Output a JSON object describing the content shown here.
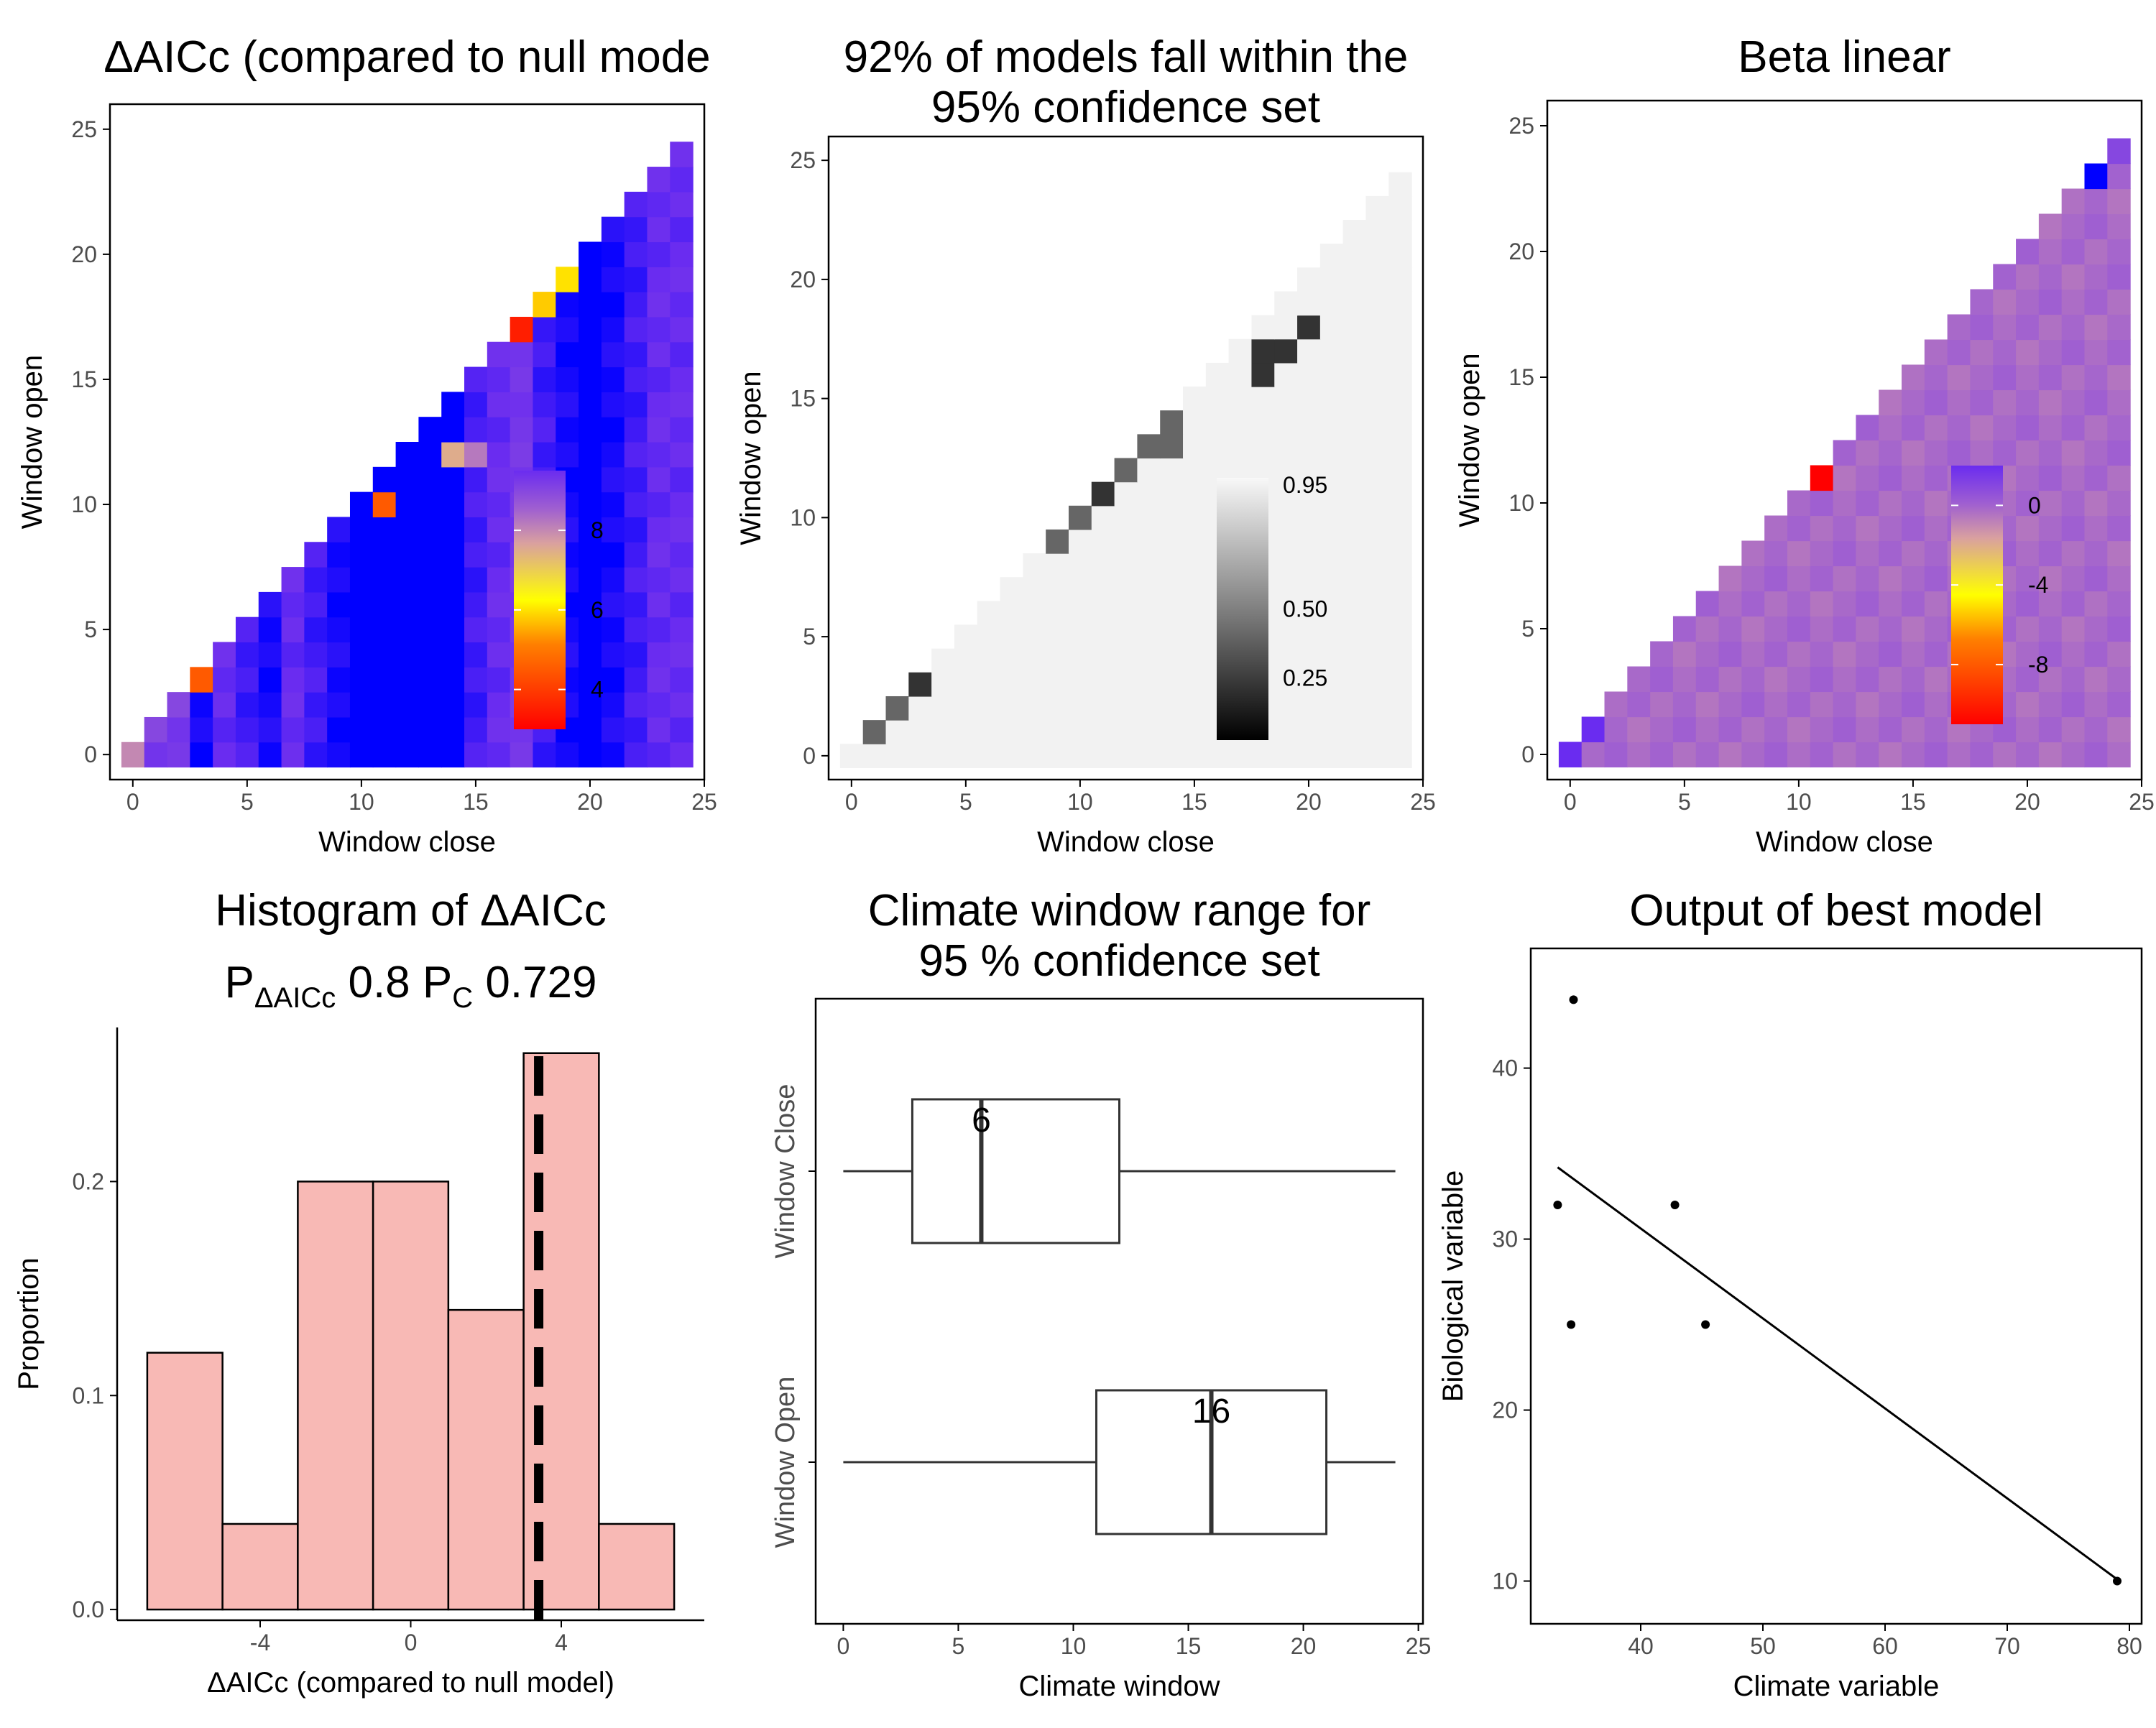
{
  "colors": {
    "heat_low": "#ff0000",
    "heat_mid": "#ffff00",
    "heat_high": "#6a2cf0",
    "heat_extreme": "#0000ff",
    "histogram_fill": "#f8b9b5",
    "axis": "#000000",
    "tick_text": "#4d4d4d"
  },
  "chart_data": [
    {
      "type": "heatmap",
      "title": "ΔAICc (compared to null mode",
      "xlabel": "Window close",
      "ylabel": "Window open",
      "x_ticks": [
        "0",
        "5",
        "10",
        "15",
        "20",
        "25"
      ],
      "y_ticks": [
        "0",
        "5",
        "10",
        "15",
        "20",
        "25"
      ],
      "xlim": [
        -1,
        25
      ],
      "ylim": [
        -1,
        26
      ],
      "legend_ticks": [
        "8",
        "6",
        "4"
      ],
      "legend_range": [
        3,
        9.5
      ],
      "legend_position": "inside bottom-right",
      "cells": [
        [
          0,
          0,
          8
        ],
        [
          0,
          1,
          9
        ],
        [
          1,
          1,
          9
        ],
        [
          0,
          2,
          9
        ],
        [
          1,
          2,
          9
        ],
        [
          2,
          2,
          9
        ],
        [
          0,
          3,
          6
        ],
        [
          1,
          3,
          6
        ],
        [
          2,
          3,
          6
        ],
        [
          3,
          3,
          4.5
        ],
        [
          0,
          6,
          9
        ],
        [
          1,
          6,
          9
        ],
        [
          2,
          6,
          9
        ],
        [
          3,
          6,
          7.5
        ],
        [
          4,
          6,
          8
        ],
        [
          8,
          13,
          6
        ],
        [
          11,
          10,
          4.5
        ],
        [
          17,
          17,
          3.5
        ],
        [
          17,
          18,
          3.6
        ],
        [
          18,
          18,
          5.8
        ],
        [
          19,
          19,
          6
        ],
        [
          17,
          19,
          7.5
        ],
        [
          5,
          15,
          7.5
        ],
        [
          14,
          12,
          7.5
        ],
        [
          15,
          12,
          8.2
        ],
        [
          16,
          20,
          8
        ]
      ],
      "stripe_values": [
        9.6,
        9.2,
        9.2,
        9.8,
        9.4,
        9.6,
        9.8,
        9.4,
        9.6,
        9.8,
        10,
        10,
        10,
        10,
        10,
        9.6,
        9.4,
        9.2,
        9.6,
        9.8,
        10,
        9.8,
        9.6,
        9.4,
        9.4,
        9.6
      ]
    },
    {
      "type": "heatmap",
      "title": [
        "92% of models fall within the",
        "95% confidence set"
      ],
      "xlabel": "Window close",
      "ylabel": "Window open",
      "x_ticks": [
        "0",
        "5",
        "10",
        "15",
        "20",
        "25"
      ],
      "y_ticks": [
        "0",
        "5",
        "10",
        "15",
        "20",
        "25"
      ],
      "xlim": [
        -1,
        25
      ],
      "ylim": [
        -1,
        26
      ],
      "legend_ticks": [
        "0.95",
        "0.50",
        "0.25"
      ],
      "legend_values": [
        0.95,
        0.5,
        0.25
      ],
      "legend_position": "inside bottom-right",
      "cells": [
        [
          0,
          3,
          0.2
        ],
        [
          1,
          3,
          0.2
        ],
        [
          2,
          3,
          0.2
        ],
        [
          3,
          3,
          0.2
        ],
        [
          0,
          2,
          0.4
        ],
        [
          1,
          2,
          0.4
        ],
        [
          2,
          2,
          0.4
        ],
        [
          0,
          1,
          0.4
        ],
        [
          1,
          1,
          0.4
        ],
        [
          2,
          5,
          0.4
        ],
        [
          3,
          6,
          0.4
        ],
        [
          4,
          7,
          0.4
        ],
        [
          4,
          8,
          0.4
        ],
        [
          4,
          9,
          0.4
        ],
        [
          4,
          10,
          0.4
        ],
        [
          2,
          9,
          0.4
        ],
        [
          1,
          12,
          0.4
        ],
        [
          1,
          13,
          0.4
        ],
        [
          2,
          11,
          0.4
        ],
        [
          2,
          10,
          0.4
        ],
        [
          1,
          11,
          0.4
        ],
        [
          2,
          17,
          0.4
        ],
        [
          4,
          18,
          0.4
        ],
        [
          2,
          13,
          0.4
        ],
        [
          3,
          13,
          0.4
        ],
        [
          5,
          13,
          0.4
        ],
        [
          6,
          13,
          0.4
        ],
        [
          7,
          13,
          0.4
        ],
        [
          4,
          14,
          0.4
        ],
        [
          4,
          15,
          0.4
        ],
        [
          4,
          16,
          0.4
        ],
        [
          5,
          17,
          0.4
        ],
        [
          6,
          17,
          0.4
        ],
        [
          7,
          17,
          0.4
        ],
        [
          7,
          16,
          0.4
        ],
        [
          8,
          16,
          0.4
        ],
        [
          9,
          16,
          0.4
        ],
        [
          10,
          16,
          0.4
        ],
        [
          11,
          16,
          0.4
        ],
        [
          8,
          14,
          0.4
        ],
        [
          9,
          14,
          0.4
        ],
        [
          10,
          14,
          0.4
        ],
        [
          11,
          14,
          0.4
        ],
        [
          12,
          14,
          0.4
        ],
        [
          13,
          14,
          0.4
        ],
        [
          14,
          14,
          0.4
        ],
        [
          8,
          15,
          0.15
        ],
        [
          9,
          15,
          0.4
        ],
        [
          10,
          15,
          0.4
        ],
        [
          11,
          15,
          0.4
        ],
        [
          12,
          15,
          0.4
        ],
        [
          13,
          15,
          0.4
        ],
        [
          14,
          15,
          0.4
        ],
        [
          9,
          13,
          0.4
        ],
        [
          10,
          13,
          0.4
        ],
        [
          11,
          13,
          0.4
        ],
        [
          12,
          13,
          0.4
        ],
        [
          13,
          13,
          0.4
        ],
        [
          14,
          13,
          0.4
        ],
        [
          10,
          12,
          0.4
        ],
        [
          11,
          12,
          0.4
        ],
        [
          12,
          12,
          0.4
        ],
        [
          11,
          13,
          0.2
        ],
        [
          10,
          11,
          0.4
        ],
        [
          11,
          11,
          0.2
        ],
        [
          9,
          10,
          0.4
        ],
        [
          10,
          10,
          0.4
        ],
        [
          9,
          9,
          0.4
        ],
        [
          14,
          16,
          0.4
        ],
        [
          15,
          16,
          0.4
        ],
        [
          15,
          17,
          0.4
        ],
        [
          16,
          17,
          0.4
        ],
        [
          16,
          18,
          0.4
        ],
        [
          17,
          18,
          0.4
        ],
        [
          16,
          19,
          0.4
        ],
        [
          17,
          19,
          0.4
        ],
        [
          17,
          20,
          0.4
        ],
        [
          17,
          21,
          0.4
        ],
        [
          17,
          22,
          0.4
        ],
        [
          17,
          23,
          0.4
        ],
        [
          17,
          24,
          0.4
        ],
        [
          18,
          16,
          0.2
        ],
        [
          19,
          17,
          0.2
        ],
        [
          18,
          17,
          0.2
        ],
        [
          20,
          18,
          0.2
        ]
      ]
    },
    {
      "type": "heatmap",
      "title": "Beta linear",
      "xlabel": "Window close",
      "ylabel": "Window open",
      "x_ticks": [
        "0",
        "5",
        "10",
        "15",
        "20",
        "25"
      ],
      "y_ticks": [
        "0",
        "5",
        "10",
        "15",
        "20",
        "25"
      ],
      "xlim": [
        -1,
        25
      ],
      "ylim": [
        -1,
        26
      ],
      "legend_ticks": [
        "0",
        "-4",
        "-8"
      ],
      "legend_range": [
        -11,
        2
      ],
      "legend_position": "inside bottom-right",
      "cells": [
        [
          0,
          0,
          2
        ],
        [
          0,
          1,
          2
        ],
        [
          1,
          1,
          2
        ],
        [
          8,
          16,
          3
        ],
        [
          11,
          11,
          -11
        ],
        [
          11,
          12,
          -7
        ],
        [
          11,
          13,
          -3
        ],
        [
          23,
          24,
          2
        ],
        [
          23,
          23,
          3
        ],
        [
          24,
          24,
          1
        ]
      ]
    },
    {
      "type": "bar",
      "title": "Histogram of ΔAICc",
      "subtitle_parts": [
        "P",
        "ΔAICc",
        " 0.8  P",
        "C",
        " 0.729"
      ],
      "xlabel": "ΔAICc (compared to null model)",
      "ylabel": "Proportion",
      "x_ticks": [
        "-4",
        "0",
        "4"
      ],
      "y_ticks": [
        "0.0",
        "0.1",
        "0.2"
      ],
      "xlim": [
        -7.8,
        7.8
      ],
      "ylim": [
        -0.005,
        0.272
      ],
      "bins": [
        [
          -7,
          -5
        ],
        [
          -5,
          -3
        ],
        [
          -3,
          -1
        ],
        [
          -1,
          1
        ],
        [
          1,
          3
        ],
        [
          3,
          5
        ],
        [
          5,
          7
        ]
      ],
      "values": [
        0.12,
        0.04,
        0.2,
        0.2,
        0.14,
        0.26,
        0.04
      ],
      "reference_line": 3.4
    },
    {
      "type": "box",
      "title": [
        "Climate window range for",
        "95 % confidence set"
      ],
      "xlabel": "Climate window",
      "ylabel": "",
      "x_ticks": [
        "0",
        "5",
        "10",
        "15",
        "20",
        "25"
      ],
      "xlim": [
        -1.2,
        25.2
      ],
      "series": [
        {
          "name": "Window Close",
          "min": 0,
          "q1": 3,
          "median": 6,
          "q3": 12,
          "max": 24,
          "median_label": "6"
        },
        {
          "name": "Window Open",
          "min": 0,
          "q1": 11,
          "median": 16,
          "q3": 21,
          "max": 24,
          "median_label": "16"
        }
      ]
    },
    {
      "type": "scatter",
      "title": "Output of best model",
      "xlabel": "Climate variable",
      "ylabel": "Biological variable",
      "x_ticks": [
        "40",
        "50",
        "60",
        "70",
        "80"
      ],
      "y_ticks": [
        "10",
        "20",
        "30",
        "40"
      ],
      "xlim": [
        31,
        81
      ],
      "ylim": [
        7.5,
        47
      ],
      "points": [
        [
          34.5,
          44
        ],
        [
          33.2,
          32
        ],
        [
          34.3,
          25
        ],
        [
          42.8,
          32
        ],
        [
          45.3,
          25
        ],
        [
          79,
          10
        ]
      ],
      "fit_line": [
        [
          33.2,
          34.2
        ],
        [
          79,
          10.1
        ]
      ]
    }
  ]
}
